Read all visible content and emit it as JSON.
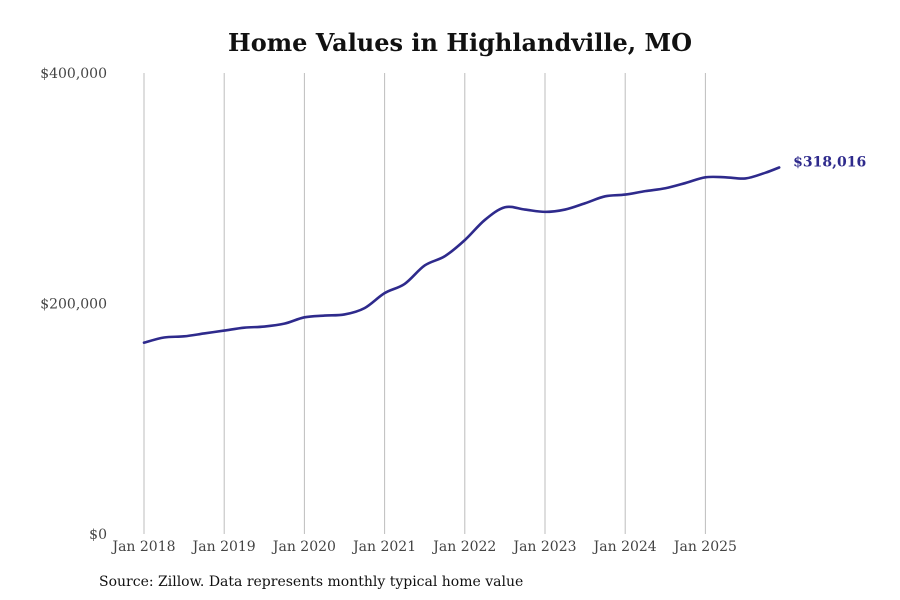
{
  "chart_data": {
    "type": "line",
    "title": "Home Values in Highlandville, MO",
    "xlabel": "",
    "ylabel": "",
    "ylim": [
      0,
      400000
    ],
    "y_ticks": [
      {
        "value": 0,
        "label": "$0"
      },
      {
        "value": 200000,
        "label": "$200,000"
      },
      {
        "value": 400000,
        "label": "$400,000"
      }
    ],
    "x_ticks": [
      {
        "value": 2018,
        "label": "Jan 2018"
      },
      {
        "value": 2019,
        "label": "Jan 2019"
      },
      {
        "value": 2020,
        "label": "Jan 2020"
      },
      {
        "value": 2021,
        "label": "Jan 2021"
      },
      {
        "value": 2022,
        "label": "Jan 2022"
      },
      {
        "value": 2023,
        "label": "Jan 2023"
      },
      {
        "value": 2024,
        "label": "Jan 2024"
      },
      {
        "value": 2025,
        "label": "Jan 2025"
      }
    ],
    "xlim": [
      2018,
      2025.92
    ],
    "grid": "vertical",
    "series": [
      {
        "name": "Typical home value",
        "color": "#2e2a8c",
        "end_label": "$318,016",
        "points": [
          [
            2018.0,
            166000
          ],
          [
            2018.25,
            170500
          ],
          [
            2018.5,
            171500
          ],
          [
            2018.75,
            174000
          ],
          [
            2019.0,
            176500
          ],
          [
            2019.25,
            179000
          ],
          [
            2019.5,
            180000
          ],
          [
            2019.75,
            182500
          ],
          [
            2020.0,
            188000
          ],
          [
            2020.25,
            189500
          ],
          [
            2020.5,
            190500
          ],
          [
            2020.75,
            196000
          ],
          [
            2021.0,
            209000
          ],
          [
            2021.25,
            217000
          ],
          [
            2021.5,
            233000
          ],
          [
            2021.75,
            241000
          ],
          [
            2022.0,
            255000
          ],
          [
            2022.25,
            272500
          ],
          [
            2022.5,
            283500
          ],
          [
            2022.75,
            281500
          ],
          [
            2023.0,
            279500
          ],
          [
            2023.25,
            281500
          ],
          [
            2023.5,
            287000
          ],
          [
            2023.75,
            293000
          ],
          [
            2024.0,
            294500
          ],
          [
            2024.25,
            297500
          ],
          [
            2024.5,
            300000
          ],
          [
            2024.75,
            304500
          ],
          [
            2025.0,
            309500
          ],
          [
            2025.25,
            309500
          ],
          [
            2025.5,
            308500
          ],
          [
            2025.75,
            313500
          ],
          [
            2025.92,
            318016
          ]
        ]
      }
    ],
    "source": "Source: Zillow. Data represents monthly typical home value"
  }
}
